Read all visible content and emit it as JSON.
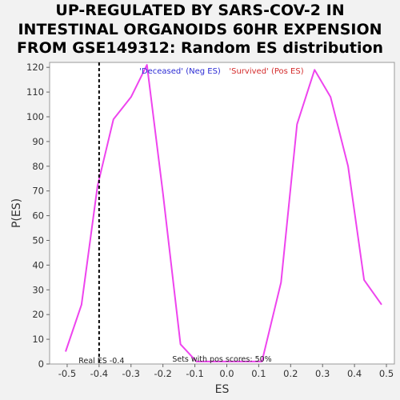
{
  "chart_data": {
    "type": "line",
    "title_lines": [
      "UP-REGULATED BY SARS-COV-2 IN",
      "INTESTINAL ORGANOIDS 60HR EXPENSION",
      "FROM GSE149312: Random ES distribution"
    ],
    "xlabel": "ES",
    "ylabel": "P(ES)",
    "xlim": [
      -0.555,
      0.525
    ],
    "ylim": [
      0,
      122
    ],
    "x_ticks": [
      -0.5,
      -0.4,
      -0.3,
      -0.2,
      -0.1,
      0.0,
      0.1,
      0.2,
      0.3,
      0.4,
      0.5
    ],
    "x_tick_labels": [
      "-0.5",
      "-0.4",
      "-0.3",
      "-0.2",
      "-0.1",
      "0.0",
      "0.1",
      "0.2",
      "0.3",
      "0.4",
      "0.5"
    ],
    "y_ticks": [
      0,
      10,
      20,
      30,
      40,
      50,
      60,
      70,
      80,
      90,
      100,
      110,
      120
    ],
    "y_tick_labels": [
      "0",
      "10",
      "20",
      "30",
      "40",
      "50",
      "60",
      "70",
      "80",
      "90",
      "100",
      "110",
      "120"
    ],
    "grid": false,
    "legend": [
      {
        "label": "'Deceased' (Neg ES)",
        "color": "#2b2bd4"
      },
      {
        "label": "'Survived' (Pos ES)",
        "color": "#d42b2b"
      }
    ],
    "series": [
      {
        "color": "#ee44ee",
        "x": [
          -0.505,
          -0.455,
          -0.405,
          -0.355,
          -0.3,
          -0.25,
          -0.2,
          -0.145,
          -0.095,
          -0.04,
          0.01,
          0.06,
          0.11,
          0.17,
          0.22,
          0.275,
          0.325,
          0.38,
          0.43,
          0.485
        ],
        "y": [
          5,
          24,
          72,
          99,
          108,
          121,
          69,
          8,
          1,
          1,
          1,
          1,
          1,
          33,
          97,
          119,
          108,
          80,
          34,
          24
        ]
      }
    ],
    "real_es": {
      "x": -0.4,
      "label": "Real ES -0.4",
      "color": "#000000"
    },
    "annotation": "Sets with pos scores: 50%"
  }
}
